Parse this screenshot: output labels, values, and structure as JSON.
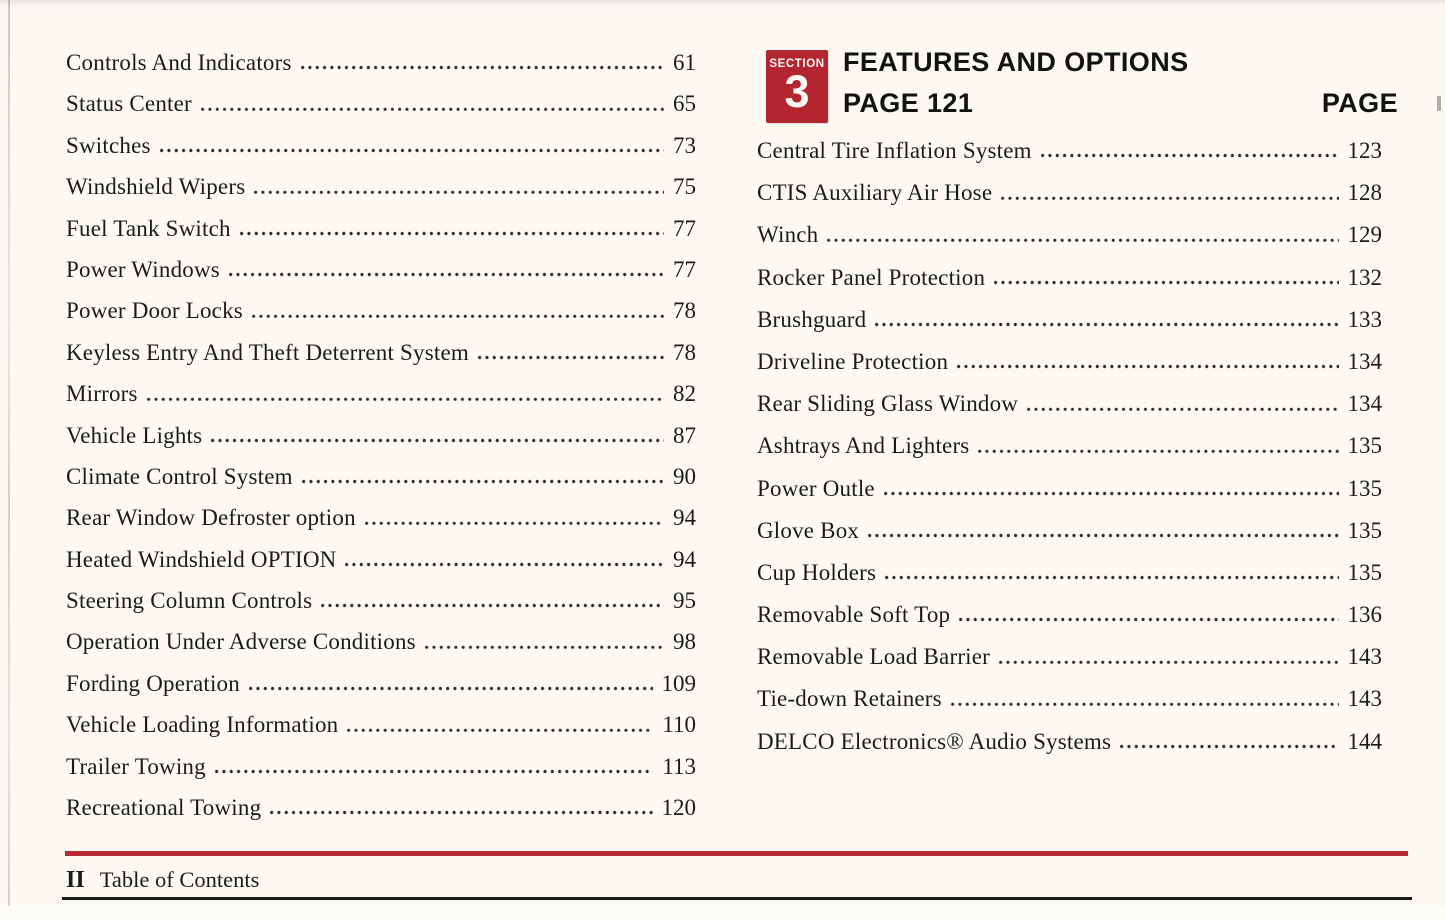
{
  "left_column": {
    "entries": [
      {
        "title": "Controls And Indicators",
        "page": "61"
      },
      {
        "title": "Status Center",
        "page": "65"
      },
      {
        "title": "Switches",
        "page": "73"
      },
      {
        "title": "Windshield Wipers",
        "page": "75"
      },
      {
        "title": "Fuel Tank Switch",
        "page": "77"
      },
      {
        "title": "Power Windows",
        "page": "77"
      },
      {
        "title": "Power Door Locks",
        "page": "78"
      },
      {
        "title": "Keyless Entry And Theft Deterrent System",
        "page": "78"
      },
      {
        "title": "Mirrors",
        "page": "82"
      },
      {
        "title": "Vehicle Lights",
        "page": "87"
      },
      {
        "title": "Climate Control System",
        "page": "90"
      },
      {
        "title": "Rear Window Defroster option",
        "page": "94"
      },
      {
        "title": "Heated Windshield OPTION",
        "page": "94"
      },
      {
        "title": "Steering Column Controls",
        "page": "95"
      },
      {
        "title": "Operation Under Adverse Conditions",
        "page": "98"
      },
      {
        "title": "Fording Operation",
        "page": "109"
      },
      {
        "title": "Vehicle Loading Information",
        "page": "110"
      },
      {
        "title": "Trailer Towing",
        "page": "113"
      },
      {
        "title": "Recreational Towing",
        "page": "120"
      }
    ]
  },
  "right_column": {
    "header": {
      "section_label": "SECTION",
      "section_number": "3",
      "title": "FEATURES AND OPTIONS",
      "subtitle": "PAGE 121",
      "page_column_label": "PAGE",
      "badge_color": "#b4262f"
    },
    "entries": [
      {
        "title": "Central Tire Inflation System",
        "page": "123"
      },
      {
        "title": "CTIS Auxiliary Air Hose",
        "page": "128"
      },
      {
        "title": "Winch",
        "page": "129"
      },
      {
        "title": "Rocker Panel Protection",
        "page": "132"
      },
      {
        "title": "Brushguard",
        "page": "133"
      },
      {
        "title": "Driveline Protection",
        "page": "134"
      },
      {
        "title": "Rear Sliding Glass Window",
        "page": "134"
      },
      {
        "title": "Ashtrays And Lighters",
        "page": "135"
      },
      {
        "title": "Power Outle",
        "page": "135"
      },
      {
        "title": "Glove Box",
        "page": "135"
      },
      {
        "title": "Cup Holders",
        "page": "135"
      },
      {
        "title": "Removable Soft Top",
        "page": "136"
      },
      {
        "title": "Removable Load Barrier",
        "page": "143"
      },
      {
        "title": "Tie-down Retainers",
        "page": "143"
      },
      {
        "title": "DELCO Electronics® Audio Systems",
        "page": "144"
      }
    ]
  },
  "footer": {
    "page_marker": "II",
    "title": "Table of Contents",
    "rule_color": "#b52a33"
  }
}
